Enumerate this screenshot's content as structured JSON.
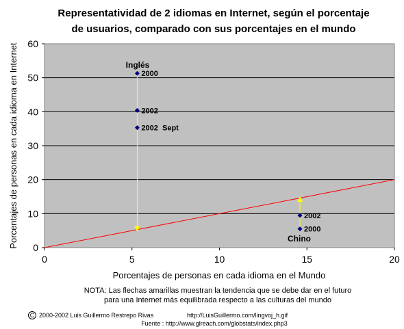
{
  "chart_data": {
    "type": "scatter",
    "title_lines": [
      "Representatividad de 2 idiomas en Internet, según el porcentaje",
      "de usuarios, comparado con sus porcentajes en el mundo"
    ],
    "xlabel": "Porcentajes de personas en cada idioma en el Mundo",
    "ylabel": "Porcentajes de personas en cada idioma en Internet",
    "xlim": [
      0,
      20
    ],
    "ylim": [
      0,
      60
    ],
    "x_ticks": [
      "0",
      "5",
      "10",
      "15",
      "20"
    ],
    "y_ticks": [
      "0",
      "10",
      "20",
      "30",
      "40",
      "50",
      "60"
    ],
    "grid": "horizontal",
    "plot_background": "#c0c0c0",
    "series": [
      {
        "name": "Inglés",
        "color": "#000080",
        "points": [
          {
            "x": 5.3,
            "y": 51.3,
            "label": "2000"
          },
          {
            "x": 5.3,
            "y": 40.4,
            "label": "2002"
          },
          {
            "x": 5.3,
            "y": 35.3,
            "label": "2002  Sept"
          }
        ]
      },
      {
        "name": "Chino",
        "color": "#000080",
        "points": [
          {
            "x": 14.6,
            "y": 9.5,
            "label": "2002"
          },
          {
            "x": 14.6,
            "y": 5.5,
            "label": "2000"
          }
        ]
      }
    ],
    "reference_line": {
      "from": [
        0,
        0
      ],
      "to": [
        20,
        20
      ],
      "color": "#ff0000"
    },
    "trend_arrows": [
      {
        "from": [
          5.3,
          51
        ],
        "to": [
          5.3,
          5.5
        ],
        "color": "#ffff00"
      },
      {
        "from": [
          14.6,
          5.8
        ],
        "to": [
          14.6,
          14.3
        ],
        "color": "#ffff00"
      }
    ]
  },
  "note": {
    "line1": "NOTA: Las flechas amarillas muestran la tendencia que se debe dar en el futuro",
    "line2": "para una Internet más equilibrada respecto a las culturas del mundo"
  },
  "credits": {
    "copyright_symbol": "C",
    "author": "2000-2002  Luis  Guillermo  Restrepo  Rivas",
    "url": "http://LuisGuillermo.com/lingvoj_h.gif",
    "source": "Fuente : http://www.glreach.com/globstats/index.php3"
  }
}
